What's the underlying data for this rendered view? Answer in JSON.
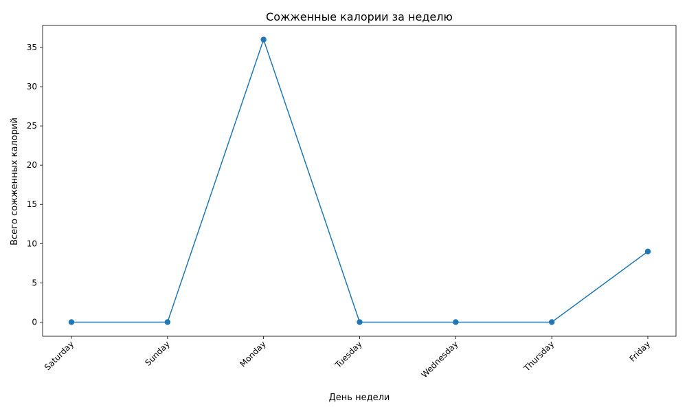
{
  "chart_data": {
    "type": "line",
    "title": "Сожженные калории за неделю",
    "xlabel": "День недели",
    "ylabel": "Всего сожженных калорий",
    "categories": [
      "Saturday",
      "Sunday",
      "Monday",
      "Tuesday",
      "Wednesday",
      "Thursday",
      "Friday"
    ],
    "series": [
      {
        "values": [
          0,
          0,
          36,
          0,
          0,
          0,
          9
        ],
        "color": "#1f77b4",
        "marker": "circle"
      }
    ],
    "ylim": [
      -1.8,
      37.8
    ],
    "yticks": [
      0,
      5,
      10,
      15,
      20,
      25,
      30,
      35
    ],
    "grid": false,
    "legend": "none"
  }
}
